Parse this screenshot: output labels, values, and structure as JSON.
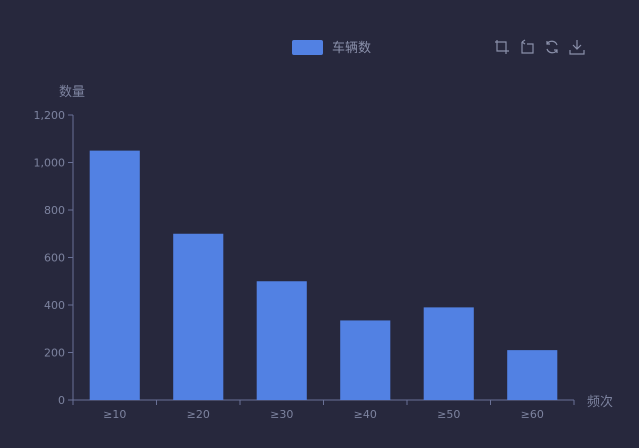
{
  "colors": {
    "background": "#27283d",
    "bar": "#5281e3",
    "axis": "#6a7196",
    "label": "#7d839f",
    "legend_text": "#8a90aa"
  },
  "toolbox": [
    {
      "name": "data-zoom-icon"
    },
    {
      "name": "zoom-reset-icon"
    },
    {
      "name": "restore-icon"
    },
    {
      "name": "save-image-icon"
    }
  ],
  "chart_data": {
    "type": "bar",
    "title": "",
    "xlabel": "频次",
    "ylabel": "数量",
    "categories": [
      "≥10",
      "≥20",
      "≥30",
      "≥40",
      "≥50",
      "≥60"
    ],
    "series": [
      {
        "name": "车辆数",
        "values": [
          1050,
          700,
          500,
          335,
          390,
          210
        ]
      }
    ],
    "ylim": [
      0,
      1200
    ],
    "yticks": [
      "0",
      "200",
      "400",
      "600",
      "800",
      "1,000",
      "1,200"
    ],
    "grid": false,
    "legend": "top-center"
  }
}
